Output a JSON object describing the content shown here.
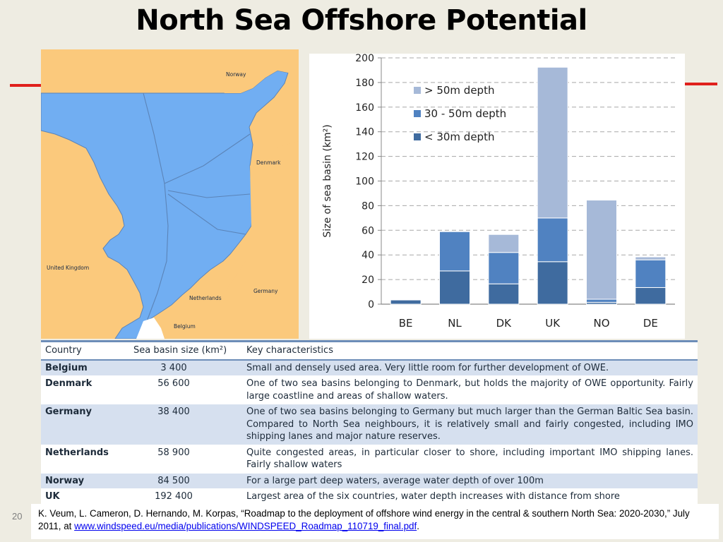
{
  "slide": {
    "title": "North Sea Offshore Potential",
    "page_number": "20"
  },
  "map": {
    "labels": {
      "norway": "Norway",
      "denmark": "Denmark",
      "united_kingdom": "United Kingdom",
      "netherlands": "Netherlands",
      "germany": "Germany",
      "belgium": "Belgium"
    },
    "colors": {
      "sea": "#71aef2",
      "land": "#fbc97c",
      "border": "#5b84b8"
    }
  },
  "chart_data": {
    "type": "bar",
    "stacked": true,
    "categories": [
      "BE",
      "NL",
      "DK",
      "UK",
      "NO",
      "DE"
    ],
    "series": [
      {
        "name": "< 30m depth",
        "color": "#3f6b9f",
        "values": [
          3.4,
          27,
          16.5,
          34.5,
          1.5,
          13.5
        ]
      },
      {
        "name": "30 - 50m depth",
        "color": "#5082c1",
        "values": [
          0,
          31.9,
          25.5,
          35.5,
          2.5,
          22.5
        ]
      },
      {
        "name": "> 50m depth",
        "color": "#a6b9d8",
        "values": [
          0,
          0,
          14.6,
          122.4,
          80.5,
          2.4
        ]
      }
    ],
    "ylabel": "Size of sea basin (km²)",
    "yticks": [
      "0",
      "20",
      "40",
      "60",
      "80",
      "100",
      "120",
      "140",
      "160",
      "180",
      "200"
    ],
    "ylim": [
      0,
      200
    ],
    "grid": true,
    "legend_position": "top-left"
  },
  "table": {
    "headers": {
      "country": "Country",
      "size": "Sea basin size (km²)",
      "key": "Key characteristics"
    },
    "rows": [
      {
        "country": "Belgium",
        "size": "3 400",
        "desc": "Small and densely used area. Very little room for further development of OWE."
      },
      {
        "country": "Denmark",
        "size": "56 600",
        "desc": "One of two sea basins belonging to Denmark, but holds the majority of OWE opportunity. Fairly large coastline and areas of shallow waters."
      },
      {
        "country": "Germany",
        "size": "38 400",
        "desc": "One of two sea basins belonging to Germany but much larger than the German Baltic Sea basin. Compared to North Sea neighbours, it is relatively small and fairly congested, including IMO shipping lanes and major nature reserves."
      },
      {
        "country": "Netherlands",
        "size": "58 900",
        "desc": "Quite congested areas, in particular closer to shore, including important IMO shipping lanes. Fairly shallow waters"
      },
      {
        "country": "Norway",
        "size": "84 500",
        "desc": "For a large part deep waters, average water depth of over 100m"
      },
      {
        "country": "UK",
        "size": "192 400",
        "desc": "Largest area of the six countries, water depth increases with distance from shore"
      }
    ]
  },
  "citation": {
    "text": "K. Veum, L. Cameron, D. Hernando, M. Korpas, “Roadmap to the deployment of offshore wind energy in the central & southern North Sea: 2020-2030,” July 2011, at ",
    "link": "www.windspeed.eu/media/publications/WINDSPEED_Roadmap_110719_final.pdf",
    "end": "."
  },
  "colors": {
    "accent_red": "#e0201c",
    "table_header_line": "#6c8db8",
    "table_alt_row": "#d6e0ef"
  }
}
